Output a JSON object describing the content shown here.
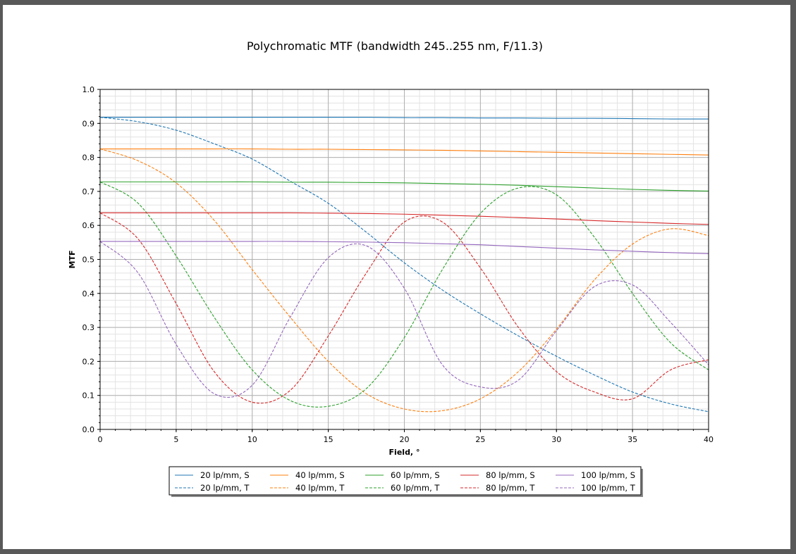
{
  "chart_data": {
    "type": "line",
    "title": "Polychromatic MTF (bandwidth 245..255 nm, F/11.3)",
    "xlabel": "Field, °",
    "ylabel": "MTF",
    "xlim": [
      0,
      40
    ],
    "ylim": [
      0,
      1.0
    ],
    "x_ticks": [
      "0",
      "5",
      "10",
      "15",
      "20",
      "25",
      "30",
      "35",
      "40"
    ],
    "y_ticks": [
      "0.0",
      "0.1",
      "0.2",
      "0.3",
      "0.4",
      "0.5",
      "0.6",
      "0.7",
      "0.8",
      "0.9",
      "1.0"
    ],
    "grid": true,
    "legend_position": "bottom-center",
    "x": [
      0,
      2.5,
      5,
      7.5,
      10,
      12.5,
      15,
      17.5,
      20,
      22.5,
      25,
      27.5,
      30,
      32.5,
      35,
      37.5,
      40
    ],
    "series": [
      {
        "name": "20 lp/mm, S",
        "color": "#1f77b4",
        "dash": false,
        "values": [
          0.918,
          0.918,
          0.918,
          0.918,
          0.918,
          0.918,
          0.918,
          0.918,
          0.917,
          0.917,
          0.916,
          0.916,
          0.915,
          0.915,
          0.914,
          0.913,
          0.913
        ]
      },
      {
        "name": "20 lp/mm, T",
        "color": "#1f77b4",
        "dash": true,
        "values": [
          0.918,
          0.905,
          0.88,
          0.84,
          0.795,
          0.73,
          0.665,
          0.58,
          0.49,
          0.41,
          0.34,
          0.275,
          0.215,
          0.16,
          0.11,
          0.075,
          0.052
        ]
      },
      {
        "name": "40 lp/mm, S",
        "color": "#ff7f0e",
        "dash": false,
        "values": [
          0.825,
          0.825,
          0.825,
          0.825,
          0.825,
          0.824,
          0.824,
          0.823,
          0.822,
          0.821,
          0.819,
          0.817,
          0.815,
          0.813,
          0.811,
          0.809,
          0.807
        ]
      },
      {
        "name": "40 lp/mm, T",
        "color": "#ff7f0e",
        "dash": true,
        "values": [
          0.825,
          0.79,
          0.725,
          0.615,
          0.47,
          0.33,
          0.2,
          0.105,
          0.06,
          0.055,
          0.09,
          0.17,
          0.295,
          0.44,
          0.545,
          0.59,
          0.57
        ]
      },
      {
        "name": "60 lp/mm, S",
        "color": "#2ca02c",
        "dash": false,
        "values": [
          0.728,
          0.728,
          0.728,
          0.728,
          0.728,
          0.727,
          0.727,
          0.726,
          0.725,
          0.723,
          0.721,
          0.718,
          0.714,
          0.71,
          0.706,
          0.703,
          0.701
        ]
      },
      {
        "name": "60 lp/mm, T",
        "color": "#2ca02c",
        "dash": true,
        "values": [
          0.728,
          0.665,
          0.51,
          0.33,
          0.175,
          0.085,
          0.068,
          0.12,
          0.27,
          0.47,
          0.635,
          0.71,
          0.69,
          0.565,
          0.4,
          0.255,
          0.175
        ]
      },
      {
        "name": "80 lp/mm, S",
        "color": "#d62728",
        "dash": false,
        "values": [
          0.637,
          0.637,
          0.637,
          0.637,
          0.637,
          0.637,
          0.636,
          0.635,
          0.633,
          0.63,
          0.627,
          0.623,
          0.619,
          0.614,
          0.61,
          0.606,
          0.603
        ]
      },
      {
        "name": "80 lp/mm, T",
        "color": "#d62728",
        "dash": true,
        "values": [
          0.637,
          0.56,
          0.37,
          0.17,
          0.08,
          0.115,
          0.275,
          0.46,
          0.61,
          0.61,
          0.475,
          0.3,
          0.17,
          0.11,
          0.09,
          0.175,
          0.205
        ]
      },
      {
        "name": "100 lp/mm, S",
        "color": "#9467bd",
        "dash": false,
        "values": [
          0.553,
          0.553,
          0.553,
          0.553,
          0.553,
          0.553,
          0.552,
          0.551,
          0.549,
          0.546,
          0.543,
          0.538,
          0.533,
          0.528,
          0.524,
          0.52,
          0.517
        ]
      },
      {
        "name": "100 lp/mm, T",
        "color": "#9467bd",
        "dash": true,
        "values": [
          0.553,
          0.46,
          0.25,
          0.105,
          0.13,
          0.33,
          0.505,
          0.54,
          0.415,
          0.19,
          0.125,
          0.145,
          0.29,
          0.42,
          0.425,
          0.315,
          0.19
        ]
      }
    ]
  }
}
